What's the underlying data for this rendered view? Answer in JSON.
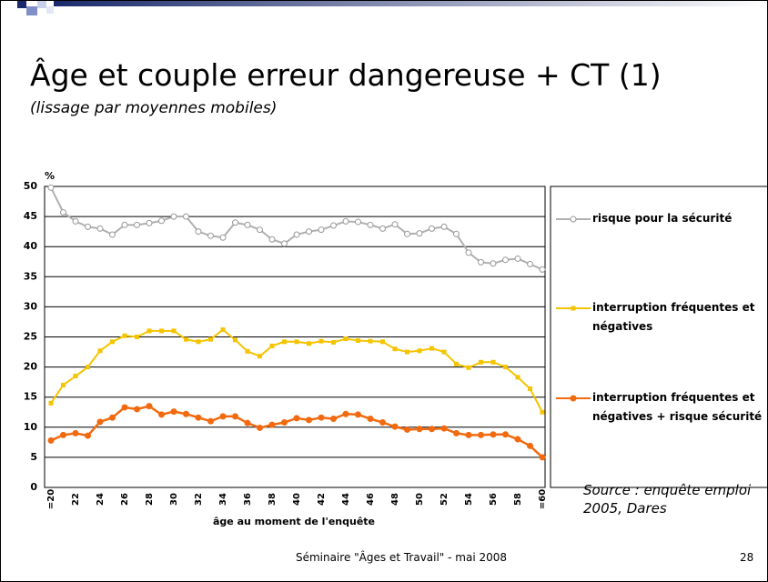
{
  "chart_data": {
    "type": "line",
    "title": "Âge et couple erreur dangereuse + CT (1)",
    "subtitle": "(lissage par moyennes mobiles)",
    "y_label": "%",
    "x_label": "âge au moment de l'enquête",
    "source": "Source : enquête emploi 2005, Dares",
    "categories": [
      "=20",
      null,
      "22",
      null,
      "24",
      null,
      "26",
      null,
      "28",
      null,
      "30",
      null,
      "32",
      null,
      "34",
      null,
      "36",
      null,
      "38",
      null,
      "40",
      null,
      "42",
      null,
      "44",
      null,
      "46",
      null,
      "48",
      null,
      "50",
      null,
      "52",
      null,
      "54",
      null,
      "56",
      null,
      "58",
      null,
      "=60"
    ],
    "ylim": [
      0,
      50
    ],
    "yticks": [
      0,
      5,
      10,
      15,
      20,
      25,
      30,
      35,
      40,
      45,
      50
    ],
    "grid": true,
    "legend": "right",
    "series": [
      {
        "name": "risque pour la sécurité",
        "color": "#b0b0b0",
        "values": [
          49.8,
          45.7,
          44.2,
          43.3,
          43,
          42,
          43.6,
          43.6,
          43.9,
          44.3,
          45,
          45,
          42.5,
          41.8,
          41.5,
          44,
          43.6,
          42.8,
          41.2,
          40.5,
          42,
          42.5,
          42.8,
          43.5,
          44.2,
          44.1,
          43.6,
          43,
          43.7,
          42.1,
          42.2,
          43,
          43.3,
          42.1,
          39,
          37.4,
          37.2,
          37.8,
          38,
          37.1,
          36.2
        ]
      },
      {
        "name": "interruption fréquentes et négatives",
        "color": "#f5c400",
        "values": [
          14,
          17,
          18.5,
          20,
          22.7,
          24.2,
          25.2,
          25,
          26,
          26,
          26,
          24.6,
          24.2,
          24.6,
          26.2,
          24.5,
          22.6,
          21.8,
          23.5,
          24.2,
          24.2,
          23.9,
          24.3,
          24.1,
          24.7,
          24.4,
          24.3,
          24.2,
          23,
          22.5,
          22.7,
          23.1,
          22.5,
          20.5,
          19.9,
          20.8,
          20.8,
          20,
          18.3,
          16.4,
          12.5
        ]
      },
      {
        "name": "interruption fréquentes et négatives + risque sécurité",
        "color": "#f26a10",
        "values": [
          7.8,
          8.7,
          9,
          8.6,
          10.9,
          11.6,
          13.3,
          13,
          13.5,
          12.1,
          12.6,
          12.2,
          11.6,
          11,
          11.8,
          11.8,
          10.7,
          9.9,
          10.4,
          10.8,
          11.5,
          11.2,
          11.6,
          11.4,
          12.2,
          12.1,
          11.4,
          10.8,
          10.1,
          9.6,
          9.7,
          9.7,
          9.8,
          9,
          8.7,
          8.7,
          8.8,
          8.8,
          8,
          6.9,
          5
        ]
      }
    ]
  },
  "footer": {
    "text": "Séminaire \"Âges et Travail\" - mai 2008",
    "page": "28"
  }
}
